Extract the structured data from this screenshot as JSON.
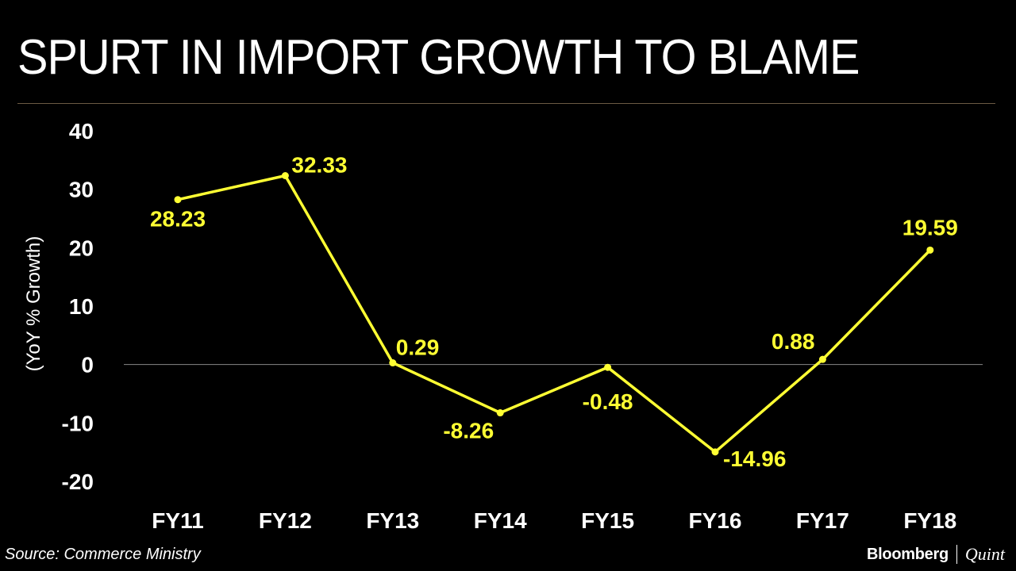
{
  "header": {
    "title": "SPURT IN IMPORT GROWTH TO BLAME"
  },
  "chart_data": {
    "type": "line",
    "title": "SPURT IN IMPORT GROWTH TO BLAME",
    "xlabel": "",
    "ylabel": "(YoY % Growth)",
    "categories": [
      "FY11",
      "FY12",
      "FY13",
      "FY14",
      "FY15",
      "FY16",
      "FY17",
      "FY18"
    ],
    "series": [
      {
        "values": [
          28.23,
          32.33,
          0.29,
          -8.26,
          -0.48,
          -14.96,
          0.88,
          19.59
        ],
        "labels": [
          "28.23",
          "32.33",
          "0.29",
          "-8.26",
          "-0.48",
          "-14.96",
          "0.88",
          "19.59"
        ],
        "color": "#ffff33"
      }
    ],
    "ylim": [
      -20,
      40
    ],
    "yticks": [
      {
        "value": 40,
        "label": "40"
      },
      {
        "value": 30,
        "label": "30"
      },
      {
        "value": 20,
        "label": "20"
      },
      {
        "value": 10,
        "label": "10"
      },
      {
        "value": 0,
        "label": "0"
      },
      {
        "value": -10,
        "label": "-10"
      },
      {
        "value": -20,
        "label": "-20"
      }
    ],
    "grid": false,
    "zero_line": true
  },
  "footer": {
    "source": "Source: Commerce Ministry",
    "brand_left": "Bloomberg",
    "brand_right": "Quint"
  },
  "colors": {
    "background": "#000000",
    "line": "#ffff33",
    "text": "#ffffff",
    "rule": "#6b5a44",
    "zero_line": "#888888"
  }
}
